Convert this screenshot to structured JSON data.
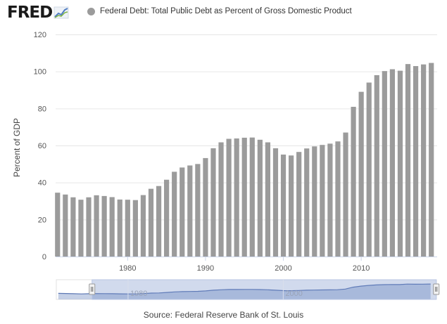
{
  "header": {
    "logo_text": "FRED",
    "logo_icon": "line-chart-icon",
    "legend_label": "Federal Debt: Total Public Debt as Percent of Gross Domestic Product"
  },
  "source_text": "Source: Federal Reserve Bank of St. Louis",
  "colors": {
    "bar": "#9b9b9b",
    "navigator_fill": "#9fb0d5",
    "navigator_line": "#5d78b4",
    "navigator_mask": "rgba(102,133,194,0.3)",
    "grid": "#e6e6e6"
  },
  "chart_data": {
    "type": "bar",
    "ylabel": "Percent of GDP",
    "ylim": [
      0,
      120
    ],
    "yticks": [
      0,
      20,
      40,
      60,
      80,
      100,
      120
    ],
    "xticks": [
      1980,
      1990,
      2000,
      2010
    ],
    "grid": true,
    "legend_position": "top",
    "x": [
      1971,
      1972,
      1973,
      1974,
      1975,
      1976,
      1977,
      1978,
      1979,
      1980,
      1981,
      1982,
      1983,
      1984,
      1985,
      1986,
      1987,
      1988,
      1989,
      1990,
      1991,
      1992,
      1993,
      1994,
      1995,
      1996,
      1997,
      1998,
      1999,
      2000,
      2001,
      2002,
      2003,
      2004,
      2005,
      2006,
      2007,
      2008,
      2009,
      2010,
      2011,
      2012,
      2013,
      2014,
      2015,
      2016,
      2017,
      2018,
      2019
    ],
    "values": [
      34.5,
      33.5,
      32,
      30.7,
      32,
      33.1,
      32.7,
      32.1,
      30.8,
      30.7,
      30.5,
      33.2,
      36.6,
      38.1,
      41.5,
      45.8,
      48.1,
      49.2,
      50,
      53.2,
      58.5,
      61.7,
      63.6,
      63.8,
      64.2,
      64.3,
      63.1,
      61.7,
      58.5,
      55.1,
      54.6,
      56.5,
      58.4,
      59.5,
      60.3,
      61,
      62.2,
      67,
      80.9,
      89,
      94,
      98,
      100.2,
      101.2,
      100.4,
      104,
      102.9,
      103.8,
      104.6
    ],
    "navigator": {
      "xticks": [
        1980,
        2000
      ],
      "range": [
        1971,
        2019
      ]
    }
  }
}
